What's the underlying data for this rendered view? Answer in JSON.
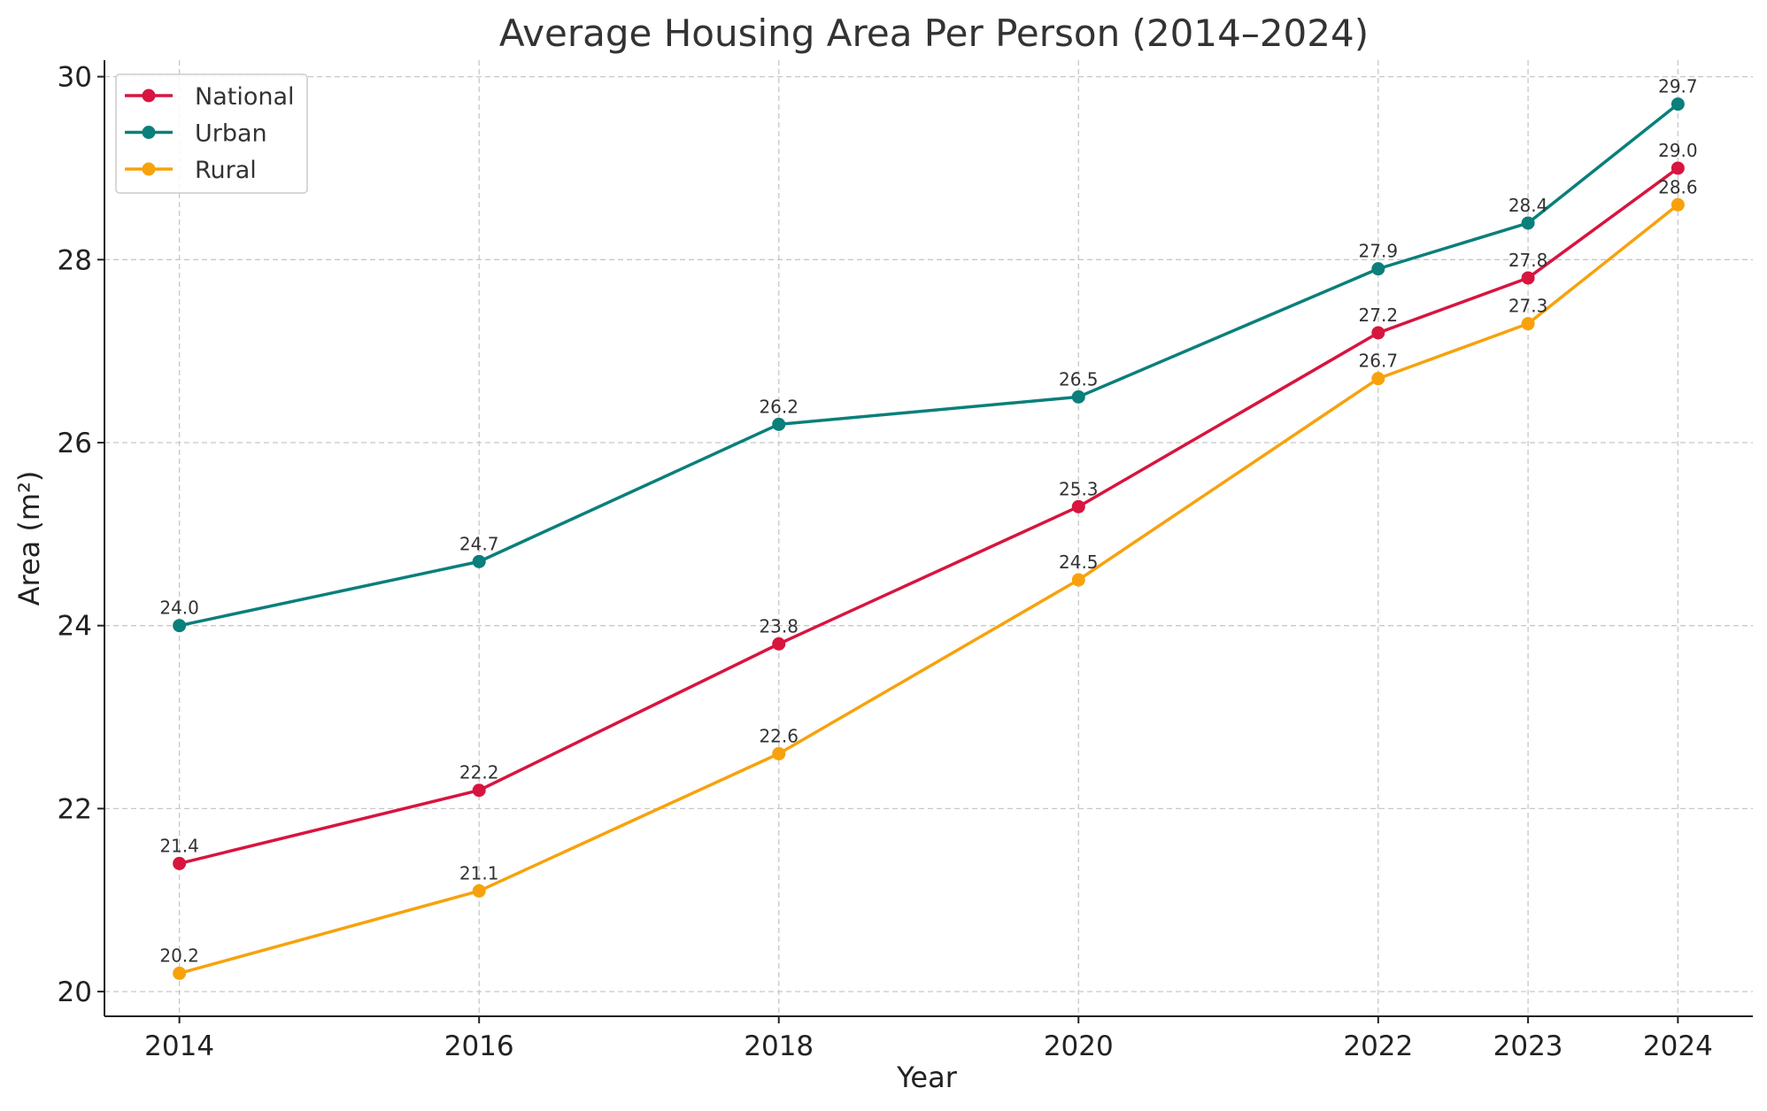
{
  "chart_data": {
    "type": "line",
    "title": "Average Housing Area Per Person (2014–2024)",
    "xlabel": "Year",
    "ylabel": "Area (m²)",
    "x": [
      2014,
      2016,
      2018,
      2020,
      2022,
      2023,
      2024
    ],
    "x_tick_labels": [
      "2014",
      "2016",
      "2018",
      "2020",
      "2022",
      "2023",
      "2024"
    ],
    "y_ticks": [
      20,
      22,
      24,
      26,
      28,
      30
    ],
    "y_tick_labels": [
      "20",
      "22",
      "24",
      "26",
      "28",
      "30"
    ],
    "xlim": [
      2013.5,
      2024.5
    ],
    "ylim": [
      19.73,
      30.18
    ],
    "grid": true,
    "legend_position": "top-left",
    "series": [
      {
        "name": "National",
        "color": "#d7153f",
        "values": [
          21.4,
          22.2,
          23.8,
          25.3,
          27.2,
          27.8,
          29.0
        ],
        "labels": [
          "21.4",
          "22.2",
          "23.8",
          "25.3",
          "27.2",
          "27.8",
          "29.0"
        ]
      },
      {
        "name": "Urban",
        "color": "#0a7f7b",
        "values": [
          24.0,
          24.7,
          26.2,
          26.5,
          27.9,
          28.4,
          29.7
        ],
        "labels": [
          "24.0",
          "24.7",
          "26.2",
          "26.5",
          "27.9",
          "28.4",
          "29.7"
        ]
      },
      {
        "name": "Rural",
        "color": "#f7a20c",
        "values": [
          20.2,
          21.1,
          22.6,
          24.5,
          26.7,
          27.3,
          28.6
        ],
        "labels": [
          "20.2",
          "21.1",
          "22.6",
          "24.5",
          "26.7",
          "27.3",
          "28.6"
        ]
      }
    ]
  }
}
